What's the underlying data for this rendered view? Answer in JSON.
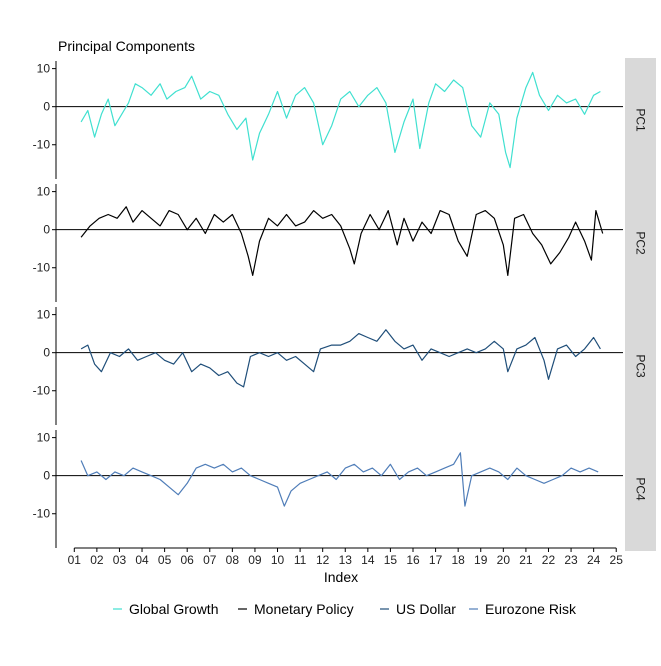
{
  "chart_data": {
    "type": "line",
    "title": "Principal Components",
    "xlabel": "Index",
    "x_ticks": [
      "01",
      "02",
      "03",
      "04",
      "05",
      "06",
      "07",
      "08",
      "09",
      "10",
      "11",
      "12",
      "13",
      "14",
      "15",
      "16",
      "17",
      "18",
      "19",
      "20",
      "21",
      "22",
      "23",
      "24",
      "25"
    ],
    "x_range": [
      0.5,
      25.3
    ],
    "ylim": [
      -19,
      12
    ],
    "y_ticks": [
      10,
      0,
      -10
    ],
    "grid": false,
    "legend_position": "bottom",
    "panels": [
      {
        "strip_label": "PC1",
        "series_name": "Global Growth",
        "color": "#40E0D0",
        "points": [
          [
            1.3,
            -4
          ],
          [
            1.6,
            -1
          ],
          [
            1.9,
            -8
          ],
          [
            2.2,
            -2
          ],
          [
            2.5,
            2
          ],
          [
            2.8,
            -5
          ],
          [
            3.1,
            -2
          ],
          [
            3.4,
            1
          ],
          [
            3.7,
            6
          ],
          [
            4.0,
            5
          ],
          [
            4.4,
            3
          ],
          [
            4.8,
            6
          ],
          [
            5.1,
            2
          ],
          [
            5.5,
            4
          ],
          [
            5.9,
            5
          ],
          [
            6.2,
            8
          ],
          [
            6.6,
            2
          ],
          [
            7.0,
            4
          ],
          [
            7.4,
            3
          ],
          [
            7.8,
            -2
          ],
          [
            8.2,
            -6
          ],
          [
            8.6,
            -3
          ],
          [
            8.9,
            -14
          ],
          [
            9.2,
            -7
          ],
          [
            9.6,
            -2
          ],
          [
            10.0,
            4
          ],
          [
            10.4,
            -3
          ],
          [
            10.8,
            3
          ],
          [
            11.2,
            5
          ],
          [
            11.6,
            1
          ],
          [
            12.0,
            -10
          ],
          [
            12.4,
            -5
          ],
          [
            12.8,
            2
          ],
          [
            13.2,
            4
          ],
          [
            13.6,
            0
          ],
          [
            14.0,
            3
          ],
          [
            14.4,
            5
          ],
          [
            14.8,
            1
          ],
          [
            15.2,
            -12
          ],
          [
            15.6,
            -4
          ],
          [
            16.0,
            2
          ],
          [
            16.3,
            -11
          ],
          [
            16.7,
            1
          ],
          [
            17.0,
            6
          ],
          [
            17.4,
            4
          ],
          [
            17.8,
            7
          ],
          [
            18.2,
            5
          ],
          [
            18.6,
            -5
          ],
          [
            19.0,
            -8
          ],
          [
            19.4,
            1
          ],
          [
            19.8,
            -2
          ],
          [
            20.1,
            -12
          ],
          [
            20.3,
            -16
          ],
          [
            20.6,
            -3
          ],
          [
            21.0,
            5
          ],
          [
            21.3,
            9
          ],
          [
            21.6,
            3
          ],
          [
            22.0,
            -1
          ],
          [
            22.4,
            3
          ],
          [
            22.8,
            1
          ],
          [
            23.2,
            2
          ],
          [
            23.6,
            -2
          ],
          [
            24.0,
            3
          ],
          [
            24.3,
            4
          ]
        ]
      },
      {
        "strip_label": "PC2",
        "series_name": "Monetary Policy",
        "color": "#000000",
        "points": [
          [
            1.3,
            -2
          ],
          [
            1.7,
            1
          ],
          [
            2.1,
            3
          ],
          [
            2.5,
            4
          ],
          [
            2.9,
            3
          ],
          [
            3.3,
            6
          ],
          [
            3.6,
            2
          ],
          [
            4.0,
            5
          ],
          [
            4.4,
            3
          ],
          [
            4.8,
            1
          ],
          [
            5.2,
            5
          ],
          [
            5.6,
            4
          ],
          [
            6.0,
            0
          ],
          [
            6.4,
            3
          ],
          [
            6.8,
            -1
          ],
          [
            7.2,
            4
          ],
          [
            7.6,
            2
          ],
          [
            8.0,
            4
          ],
          [
            8.4,
            -1
          ],
          [
            8.7,
            -7
          ],
          [
            8.9,
            -12
          ],
          [
            9.2,
            -3
          ],
          [
            9.6,
            3
          ],
          [
            10.0,
            1
          ],
          [
            10.4,
            4
          ],
          [
            10.8,
            1
          ],
          [
            11.2,
            2
          ],
          [
            11.6,
            5
          ],
          [
            12.0,
            3
          ],
          [
            12.4,
            4
          ],
          [
            12.8,
            1
          ],
          [
            13.2,
            -5
          ],
          [
            13.4,
            -9
          ],
          [
            13.7,
            -1
          ],
          [
            14.1,
            4
          ],
          [
            14.5,
            0
          ],
          [
            14.9,
            5
          ],
          [
            15.3,
            -4
          ],
          [
            15.6,
            3
          ],
          [
            16.0,
            -3
          ],
          [
            16.4,
            2
          ],
          [
            16.8,
            -1
          ],
          [
            17.2,
            5
          ],
          [
            17.6,
            4
          ],
          [
            18.0,
            -3
          ],
          [
            18.4,
            -7
          ],
          [
            18.8,
            4
          ],
          [
            19.2,
            5
          ],
          [
            19.6,
            3
          ],
          [
            20.0,
            -4
          ],
          [
            20.2,
            -12
          ],
          [
            20.5,
            3
          ],
          [
            20.9,
            4
          ],
          [
            21.3,
            -1
          ],
          [
            21.7,
            -4
          ],
          [
            22.1,
            -9
          ],
          [
            22.5,
            -6
          ],
          [
            22.9,
            -2
          ],
          [
            23.2,
            2
          ],
          [
            23.6,
            -3
          ],
          [
            23.9,
            -8
          ],
          [
            24.1,
            5
          ],
          [
            24.4,
            -1
          ]
        ]
      },
      {
        "strip_label": "PC3",
        "series_name": "US Dollar",
        "color": "#1F4E79",
        "points": [
          [
            1.3,
            1
          ],
          [
            1.6,
            2
          ],
          [
            1.9,
            -3
          ],
          [
            2.2,
            -5
          ],
          [
            2.6,
            0
          ],
          [
            3.0,
            -1
          ],
          [
            3.4,
            1
          ],
          [
            3.8,
            -2
          ],
          [
            4.2,
            -1
          ],
          [
            4.6,
            0
          ],
          [
            5.0,
            -2
          ],
          [
            5.4,
            -3
          ],
          [
            5.8,
            0
          ],
          [
            6.2,
            -5
          ],
          [
            6.6,
            -3
          ],
          [
            7.0,
            -4
          ],
          [
            7.4,
            -6
          ],
          [
            7.8,
            -5
          ],
          [
            8.2,
            -8
          ],
          [
            8.5,
            -9
          ],
          [
            8.8,
            -1
          ],
          [
            9.2,
            0
          ],
          [
            9.6,
            -1
          ],
          [
            10.0,
            0
          ],
          [
            10.4,
            -2
          ],
          [
            10.8,
            -1
          ],
          [
            11.2,
            -3
          ],
          [
            11.6,
            -5
          ],
          [
            11.9,
            1
          ],
          [
            12.4,
            2
          ],
          [
            12.8,
            2
          ],
          [
            13.2,
            3
          ],
          [
            13.6,
            5
          ],
          [
            14.0,
            4
          ],
          [
            14.4,
            3
          ],
          [
            14.8,
            6
          ],
          [
            15.2,
            3
          ],
          [
            15.6,
            1
          ],
          [
            16.0,
            2
          ],
          [
            16.4,
            -2
          ],
          [
            16.8,
            1
          ],
          [
            17.2,
            0
          ],
          [
            17.6,
            -1
          ],
          [
            18.0,
            0
          ],
          [
            18.4,
            1
          ],
          [
            18.8,
            0
          ],
          [
            19.2,
            1
          ],
          [
            19.6,
            3
          ],
          [
            20.0,
            1
          ],
          [
            20.2,
            -5
          ],
          [
            20.6,
            1
          ],
          [
            21.0,
            2
          ],
          [
            21.4,
            4
          ],
          [
            21.8,
            -2
          ],
          [
            22.0,
            -7
          ],
          [
            22.4,
            1
          ],
          [
            22.8,
            2
          ],
          [
            23.2,
            -1
          ],
          [
            23.6,
            1
          ],
          [
            24.0,
            4
          ],
          [
            24.3,
            1
          ]
        ]
      },
      {
        "strip_label": "PC4",
        "series_name": "Eurozone Risk",
        "color": "#4F7DB8",
        "points": [
          [
            1.3,
            4
          ],
          [
            1.6,
            0
          ],
          [
            2.0,
            1
          ],
          [
            2.4,
            -1
          ],
          [
            2.8,
            1
          ],
          [
            3.2,
            0
          ],
          [
            3.6,
            2
          ],
          [
            4.0,
            1
          ],
          [
            4.4,
            0
          ],
          [
            4.8,
            -1
          ],
          [
            5.2,
            -3
          ],
          [
            5.6,
            -5
          ],
          [
            6.0,
            -2
          ],
          [
            6.4,
            2
          ],
          [
            6.8,
            3
          ],
          [
            7.2,
            2
          ],
          [
            7.6,
            3
          ],
          [
            8.0,
            1
          ],
          [
            8.4,
            2
          ],
          [
            8.8,
            0
          ],
          [
            9.2,
            -1
          ],
          [
            9.6,
            -2
          ],
          [
            10.0,
            -3
          ],
          [
            10.3,
            -8
          ],
          [
            10.6,
            -4
          ],
          [
            11.0,
            -2
          ],
          [
            11.4,
            -1
          ],
          [
            11.8,
            0
          ],
          [
            12.2,
            1
          ],
          [
            12.6,
            -1
          ],
          [
            13.0,
            2
          ],
          [
            13.4,
            3
          ],
          [
            13.8,
            1
          ],
          [
            14.2,
            2
          ],
          [
            14.6,
            0
          ],
          [
            15.0,
            3
          ],
          [
            15.4,
            -1
          ],
          [
            15.8,
            1
          ],
          [
            16.2,
            2
          ],
          [
            16.6,
            0
          ],
          [
            17.0,
            1
          ],
          [
            17.4,
            2
          ],
          [
            17.8,
            3
          ],
          [
            18.1,
            6
          ],
          [
            18.3,
            -8
          ],
          [
            18.6,
            0
          ],
          [
            19.0,
            1
          ],
          [
            19.4,
            2
          ],
          [
            19.8,
            1
          ],
          [
            20.2,
            -1
          ],
          [
            20.6,
            2
          ],
          [
            21.0,
            0
          ],
          [
            21.4,
            -1
          ],
          [
            21.8,
            -2
          ],
          [
            22.2,
            -1
          ],
          [
            22.6,
            0
          ],
          [
            23.0,
            2
          ],
          [
            23.4,
            1
          ],
          [
            23.8,
            2
          ],
          [
            24.2,
            1
          ]
        ]
      }
    ],
    "legend": [
      {
        "label": "Global Growth",
        "color": "#40E0D0"
      },
      {
        "label": "Monetary Policy",
        "color": "#000000"
      },
      {
        "label": "US Dollar",
        "color": "#1F4E79"
      },
      {
        "label": "Eurozone Risk",
        "color": "#4F7DB8"
      }
    ]
  }
}
